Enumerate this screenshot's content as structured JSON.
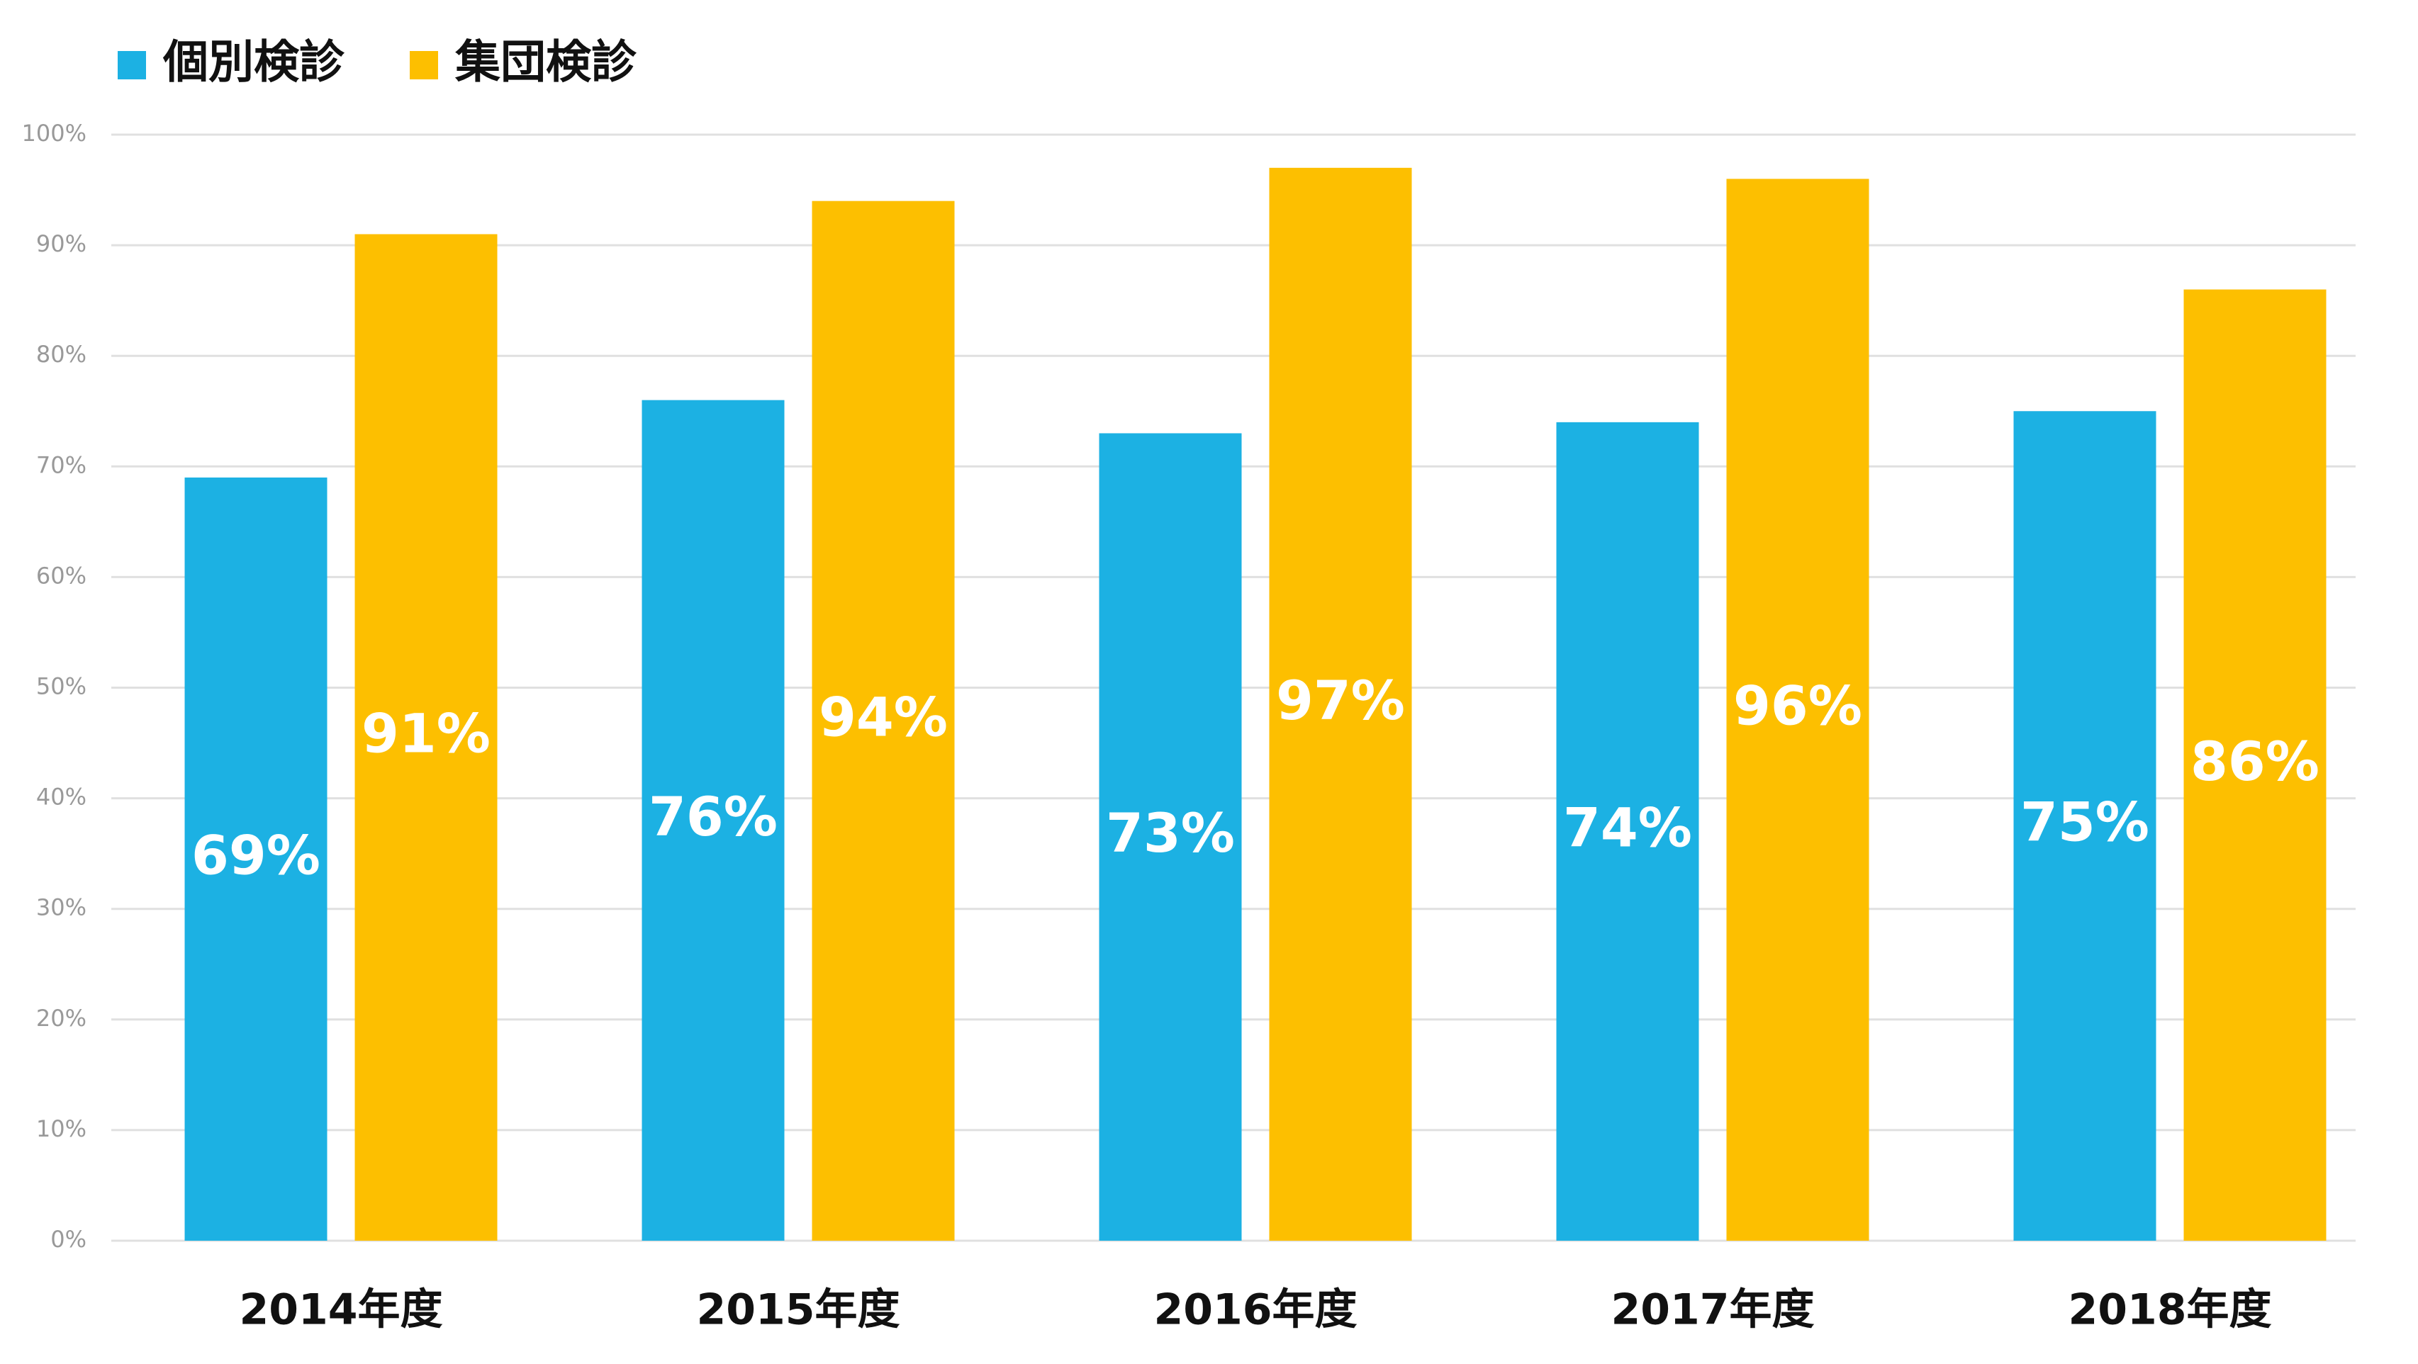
{
  "chart_data": {
    "type": "bar",
    "categories": [
      "2014年度",
      "2015年度",
      "2016年度",
      "2017年度",
      "2018年度"
    ],
    "series": [
      {
        "name": "個別検診",
        "color": "#1cb1e3",
        "values": [
          69,
          76,
          73,
          74,
          75
        ],
        "value_labels": [
          "69%",
          "76%",
          "73%",
          "74%",
          "75%"
        ]
      },
      {
        "name": "集団検診",
        "color": "#fdbf00",
        "values": [
          91,
          94,
          97,
          96,
          86
        ],
        "value_labels": [
          "91%",
          "94%",
          "97%",
          "96%",
          "86%"
        ]
      }
    ],
    "ylim": [
      0,
      100
    ],
    "yticks": [
      {
        "value": 0,
        "label": "0%"
      },
      {
        "value": 10,
        "label": "10%"
      },
      {
        "value": 20,
        "label": "20%"
      },
      {
        "value": 30,
        "label": "30%"
      },
      {
        "value": 40,
        "label": "40%"
      },
      {
        "value": 50,
        "label": "50%"
      },
      {
        "value": 60,
        "label": "60%"
      },
      {
        "value": 70,
        "label": "70%"
      },
      {
        "value": 80,
        "label": "80%"
      },
      {
        "value": 90,
        "label": "90%"
      },
      {
        "value": 100,
        "label": "100%"
      }
    ],
    "grid": true,
    "legend": "top-left"
  }
}
